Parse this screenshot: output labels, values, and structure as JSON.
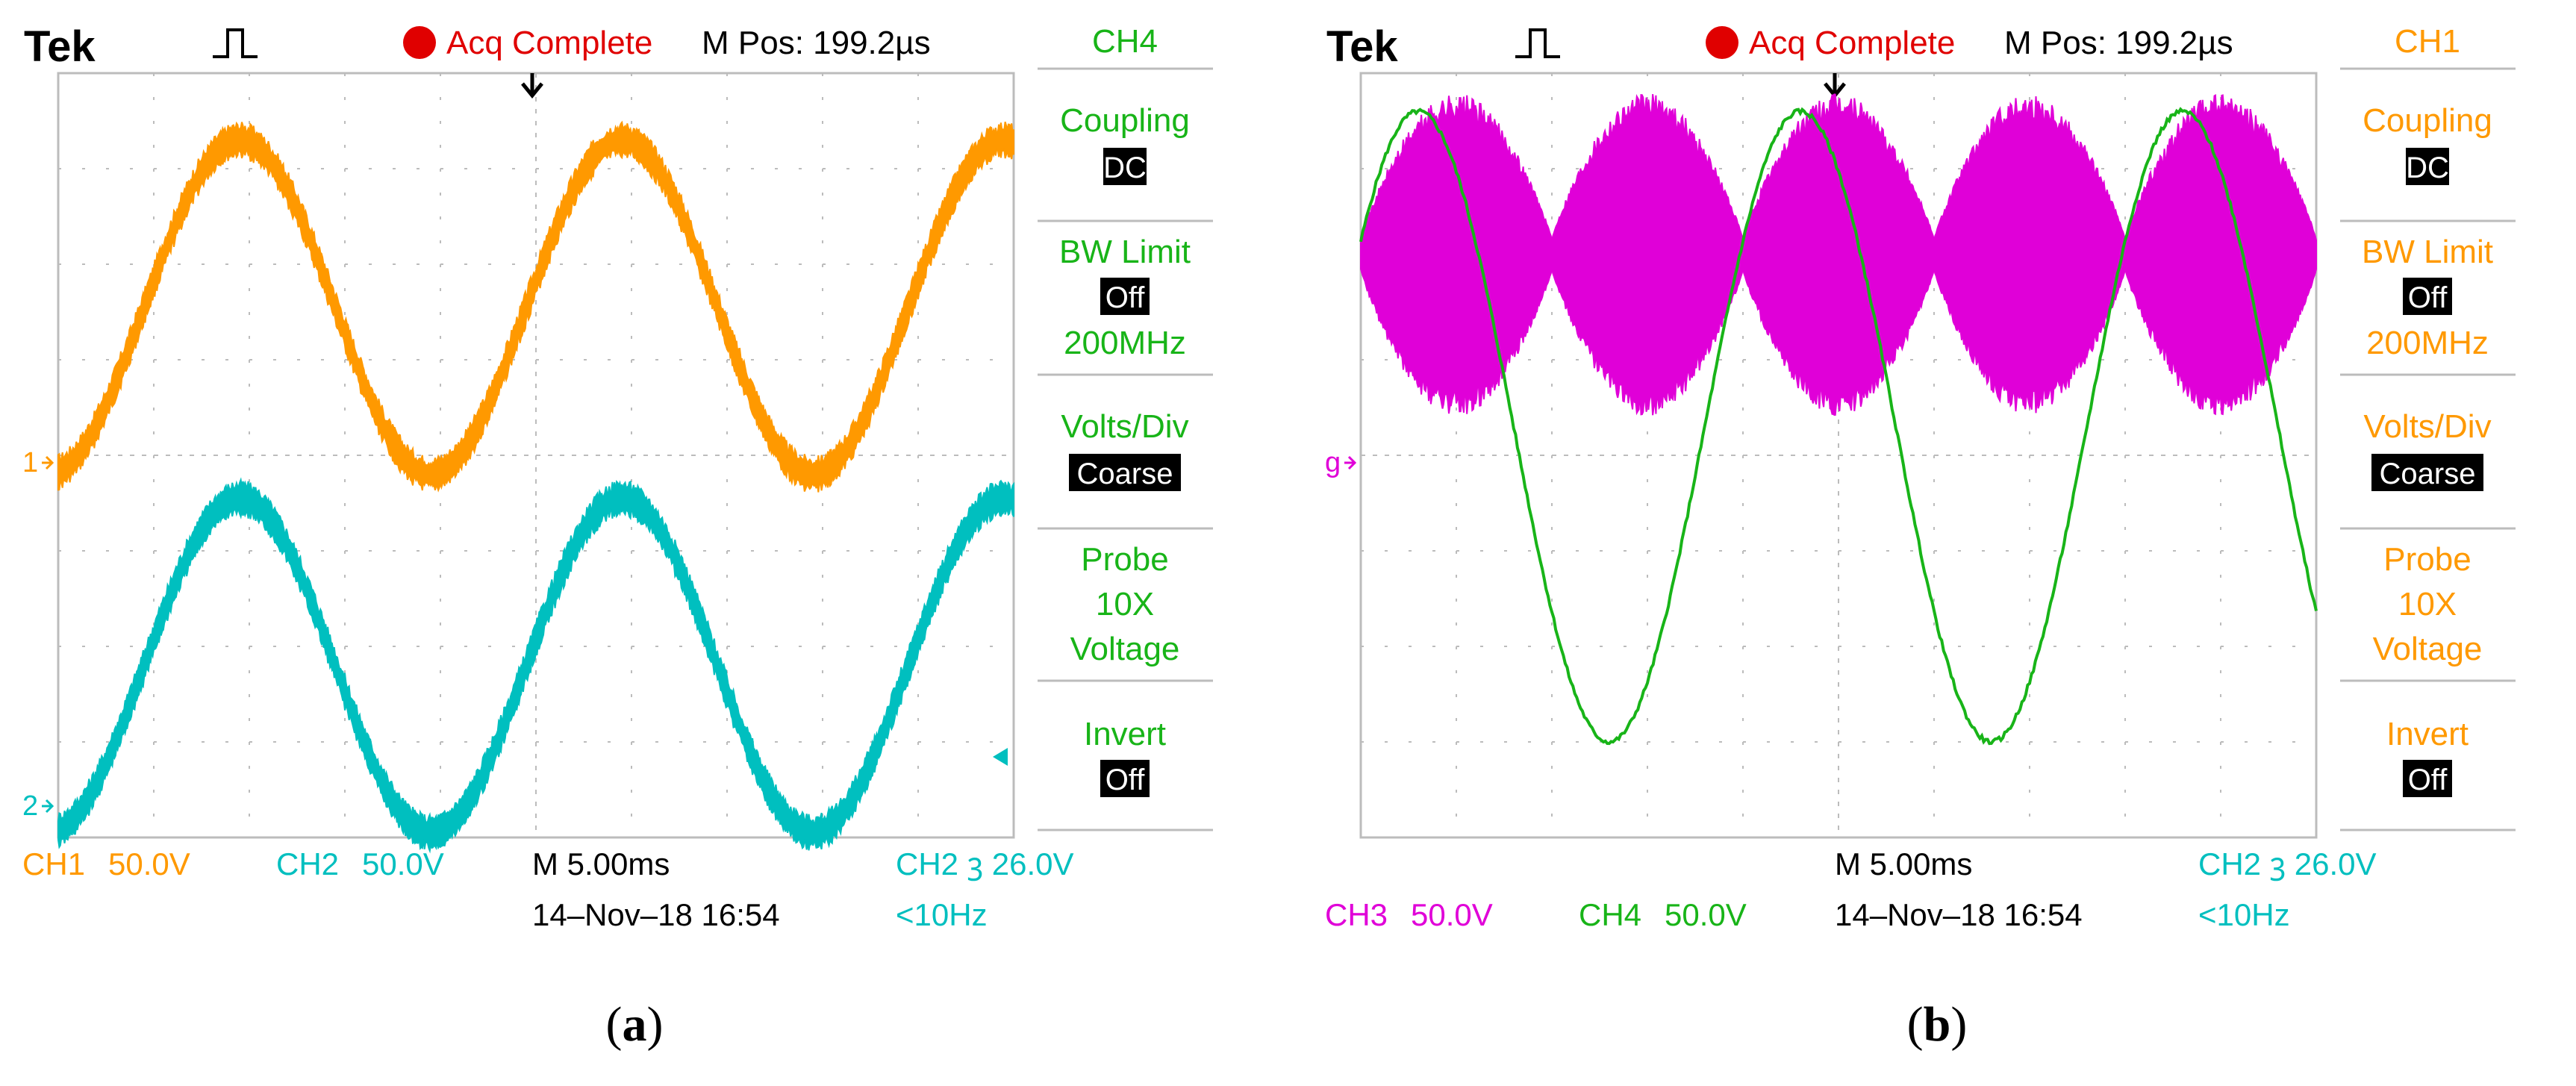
{
  "panels": [
    {
      "id": "a",
      "caption_letter": "a",
      "header": {
        "brand": "Tek",
        "trigger_state": "Acq Complete",
        "m_pos": "M Pos: 199.2µs"
      },
      "side_menu": {
        "channel": "CH4",
        "coupling_label": "Coupling",
        "coupling_value": "DC",
        "bw_label": "BW Limit",
        "bw_value": "Off",
        "bw_freq": "200MHz",
        "volts_label": "Volts/Div",
        "volts_value": "Coarse",
        "probe_label": "Probe",
        "probe_x": "10X",
        "probe_kind": "Voltage",
        "invert_label": "Invert",
        "invert_value": "Off"
      },
      "footer": {
        "ch_left": "CH1",
        "ch_left_scale": "50.0V",
        "ch_right": "CH2",
        "ch_right_scale": "50.0V",
        "timebase": "M 5.00ms",
        "datetime": "14–Nov–18 16:54",
        "trigger": "CH2 ⳍ 26.0V",
        "freq": "<10Hz"
      },
      "markers": [
        "1",
        "2"
      ]
    },
    {
      "id": "b",
      "caption_letter": "b",
      "header": {
        "brand": "Tek",
        "trigger_state": "Acq Complete",
        "m_pos": "M Pos: 199.2µs"
      },
      "side_menu": {
        "channel": "CH1",
        "coupling_label": "Coupling",
        "coupling_value": "DC",
        "bw_label": "BW Limit",
        "bw_value": "Off",
        "bw_freq": "200MHz",
        "volts_label": "Volts/Div",
        "volts_value": "Coarse",
        "probe_label": "Probe",
        "probe_x": "10X",
        "probe_kind": "Voltage",
        "invert_label": "Invert",
        "invert_value": "Off"
      },
      "footer": {
        "ch_left": "CH3",
        "ch_left_scale": "50.0V",
        "ch_right": "CH4",
        "ch_right_scale": "50.0V",
        "timebase": "M 5.00ms",
        "datetime": "14–Nov–18 16:54",
        "trigger": "CH2 ⳍ 26.0V",
        "freq": "<10Hz"
      },
      "markers": [
        "g"
      ]
    }
  ],
  "colors": {
    "ch1": "#ff9900",
    "ch2": "#00bfbf",
    "ch3": "#e000d8",
    "ch4": "#18b418",
    "grid": "#bcbcbc",
    "acq": "#e00000"
  },
  "chart_data": [
    {
      "type": "line",
      "panel": "a",
      "x_unit": "ms",
      "x_range": [
        0,
        50
      ],
      "y_unit": "div",
      "y_range": [
        -4,
        4
      ],
      "series": [
        {
          "channel": "CH1",
          "kind": "sine",
          "period_ms": 20,
          "peak_time_ms": 9.5,
          "offset_div": 1.55,
          "amplitude_div": 1.75,
          "noise_div": 0.28
        },
        {
          "channel": "CH2",
          "kind": "sine",
          "period_ms": 20,
          "peak_time_ms": 9.5,
          "offset_div": -2.2,
          "amplitude_div": 1.75,
          "noise_div": 0.28
        }
      ]
    },
    {
      "type": "line",
      "panel": "b",
      "x_unit": "ms",
      "x_range": [
        0,
        50
      ],
      "y_unit": "div",
      "y_range": [
        -4,
        4
      ],
      "series": [
        {
          "channel": "CH4",
          "kind": "sine",
          "period_ms": 20,
          "peak_time_ms": 3,
          "offset_div": 0.3,
          "amplitude_div": 3.3,
          "noise_div": 0.05
        },
        {
          "channel": "CH3",
          "kind": "envelope",
          "period_ms": 20,
          "center_div": 2.1,
          "max_halfwidth_div": 1.55,
          "min_halfwidth_div": 0.15,
          "bulge_peaks_ms": [
            4.5,
            14.5,
            24.5,
            34.5,
            44.5
          ],
          "waist_ms": [
            0,
            10.5,
            20.5,
            30.5,
            40.5
          ]
        }
      ]
    }
  ]
}
